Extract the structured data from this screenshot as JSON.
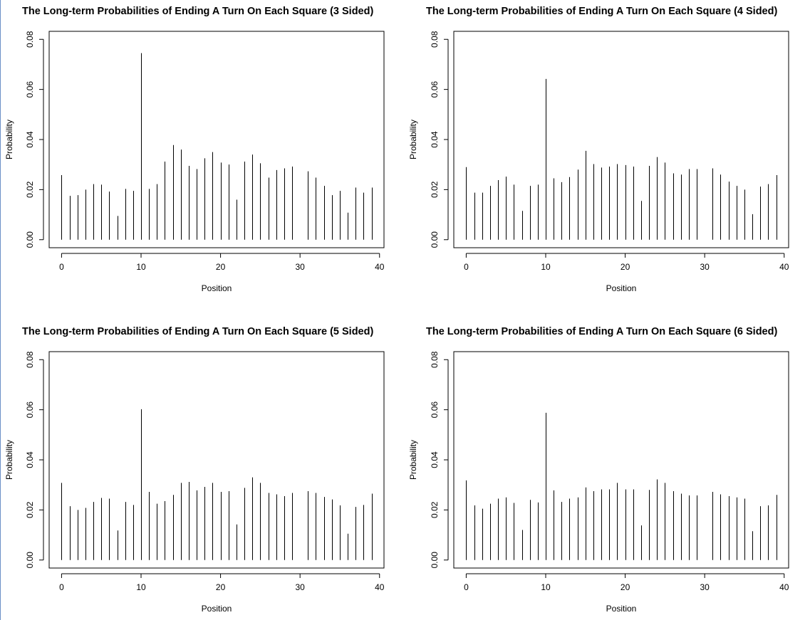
{
  "chart_data": [
    {
      "type": "bar",
      "title": "The Long-term Probabilities of Ending A Turn On Each Square (3 Sided)",
      "xlabel": "Position",
      "ylabel": "Probability",
      "xlim": [
        0,
        40
      ],
      "ylim": [
        0,
        0.08
      ],
      "xticks": [
        "0",
        "10",
        "20",
        "30",
        "40"
      ],
      "yticks": [
        "0.00",
        "0.02",
        "0.04",
        "0.06",
        "0.08"
      ],
      "grid": false,
      "x": [
        0,
        1,
        2,
        3,
        4,
        5,
        6,
        7,
        8,
        9,
        10,
        11,
        12,
        13,
        14,
        15,
        16,
        17,
        18,
        19,
        20,
        21,
        22,
        23,
        24,
        25,
        26,
        27,
        28,
        29,
        30,
        31,
        32,
        33,
        34,
        35,
        36,
        37,
        38,
        39
      ],
      "values": [
        0.0258,
        0.0175,
        0.0178,
        0.02,
        0.0222,
        0.022,
        0.0192,
        0.0095,
        0.0203,
        0.0195,
        0.0745,
        0.0203,
        0.0222,
        0.0312,
        0.0378,
        0.036,
        0.0295,
        0.0282,
        0.0325,
        0.035,
        0.0308,
        0.03,
        0.016,
        0.0312,
        0.034,
        0.0305,
        0.0248,
        0.0278,
        0.0285,
        0.0292,
        0.0,
        0.0273,
        0.0248,
        0.0215,
        0.0178,
        0.0195,
        0.0108,
        0.0208,
        0.0188,
        0.0208
      ]
    },
    {
      "type": "bar",
      "title": "The Long-term Probabilities of Ending A Turn On Each Square (4 Sided)",
      "xlabel": "Position",
      "ylabel": "Probability",
      "xlim": [
        0,
        40
      ],
      "ylim": [
        0,
        0.08
      ],
      "xticks": [
        "0",
        "10",
        "20",
        "30",
        "40"
      ],
      "yticks": [
        "0.00",
        "0.02",
        "0.04",
        "0.06",
        "0.08"
      ],
      "grid": false,
      "x": [
        0,
        1,
        2,
        3,
        4,
        5,
        6,
        7,
        8,
        9,
        10,
        11,
        12,
        13,
        14,
        15,
        16,
        17,
        18,
        19,
        20,
        21,
        22,
        23,
        24,
        25,
        26,
        27,
        28,
        29,
        30,
        31,
        32,
        33,
        34,
        35,
        36,
        37,
        38,
        39
      ],
      "values": [
        0.029,
        0.0188,
        0.0188,
        0.0215,
        0.0238,
        0.0252,
        0.022,
        0.0115,
        0.0215,
        0.022,
        0.0642,
        0.0245,
        0.023,
        0.025,
        0.028,
        0.0355,
        0.0302,
        0.0288,
        0.0292,
        0.0302,
        0.0298,
        0.0292,
        0.0155,
        0.0295,
        0.033,
        0.0308,
        0.0265,
        0.026,
        0.0282,
        0.0282,
        0.0,
        0.0285,
        0.026,
        0.0232,
        0.0215,
        0.02,
        0.0102,
        0.0212,
        0.0222,
        0.0258
      ]
    },
    {
      "type": "bar",
      "title": "The Long-term Probabilities of Ending A Turn On Each Square (5 Sided)",
      "xlabel": "Position",
      "ylabel": "Probability",
      "xlim": [
        0,
        40
      ],
      "ylim": [
        0,
        0.08
      ],
      "xticks": [
        "0",
        "10",
        "20",
        "30",
        "40"
      ],
      "yticks": [
        "0.00",
        "0.02",
        "0.04",
        "0.06",
        "0.08"
      ],
      "grid": false,
      "x": [
        0,
        1,
        2,
        3,
        4,
        5,
        6,
        7,
        8,
        9,
        10,
        11,
        12,
        13,
        14,
        15,
        16,
        17,
        18,
        19,
        20,
        21,
        22,
        23,
        24,
        25,
        26,
        27,
        28,
        29,
        30,
        31,
        32,
        33,
        34,
        35,
        36,
        37,
        38,
        39
      ],
      "values": [
        0.0308,
        0.0215,
        0.02,
        0.0208,
        0.0232,
        0.0248,
        0.0245,
        0.0118,
        0.0232,
        0.022,
        0.0602,
        0.0272,
        0.0225,
        0.0235,
        0.026,
        0.0308,
        0.0312,
        0.0278,
        0.0292,
        0.0308,
        0.0272,
        0.0275,
        0.0142,
        0.0288,
        0.033,
        0.0308,
        0.0268,
        0.0262,
        0.0255,
        0.0268,
        0.0,
        0.0275,
        0.0268,
        0.0252,
        0.0242,
        0.0218,
        0.0105,
        0.0212,
        0.022,
        0.0265
      ]
    },
    {
      "type": "bar",
      "title": "The Long-term Probabilities of Ending A Turn On Each Square (6 Sided)",
      "xlabel": "Position",
      "ylabel": "Probability",
      "xlim": [
        0,
        40
      ],
      "ylim": [
        0,
        0.08
      ],
      "xticks": [
        "0",
        "10",
        "20",
        "30",
        "40"
      ],
      "yticks": [
        "0.00",
        "0.02",
        "0.04",
        "0.06",
        "0.08"
      ],
      "grid": false,
      "x": [
        0,
        1,
        2,
        3,
        4,
        5,
        6,
        7,
        8,
        9,
        10,
        11,
        12,
        13,
        14,
        15,
        16,
        17,
        18,
        19,
        20,
        21,
        22,
        23,
        24,
        25,
        26,
        27,
        28,
        29,
        30,
        31,
        32,
        33,
        34,
        35,
        36,
        37,
        38,
        39
      ],
      "values": [
        0.0318,
        0.0218,
        0.0205,
        0.0225,
        0.0245,
        0.025,
        0.0228,
        0.012,
        0.024,
        0.023,
        0.0588,
        0.0278,
        0.0232,
        0.0245,
        0.025,
        0.029,
        0.0275,
        0.0282,
        0.0282,
        0.0308,
        0.0282,
        0.0282,
        0.0138,
        0.028,
        0.0322,
        0.0308,
        0.0275,
        0.0265,
        0.0258,
        0.0258,
        0.0,
        0.0272,
        0.0262,
        0.0255,
        0.025,
        0.0245,
        0.0115,
        0.0215,
        0.0218,
        0.026
      ]
    }
  ]
}
